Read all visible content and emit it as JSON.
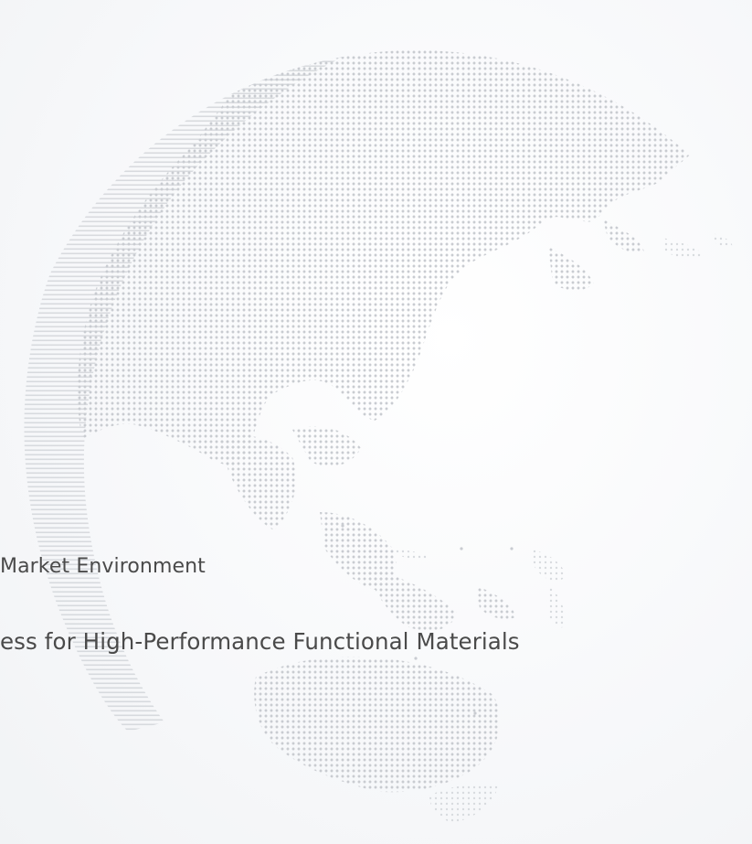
{
  "lines": [
    "Market Environment",
    "ess for High-Performance Functional Materials"
  ],
  "colors": {
    "background": "#f7f8fa",
    "globe_dots": "#cfd2d6",
    "text": "#4a4a4a"
  }
}
